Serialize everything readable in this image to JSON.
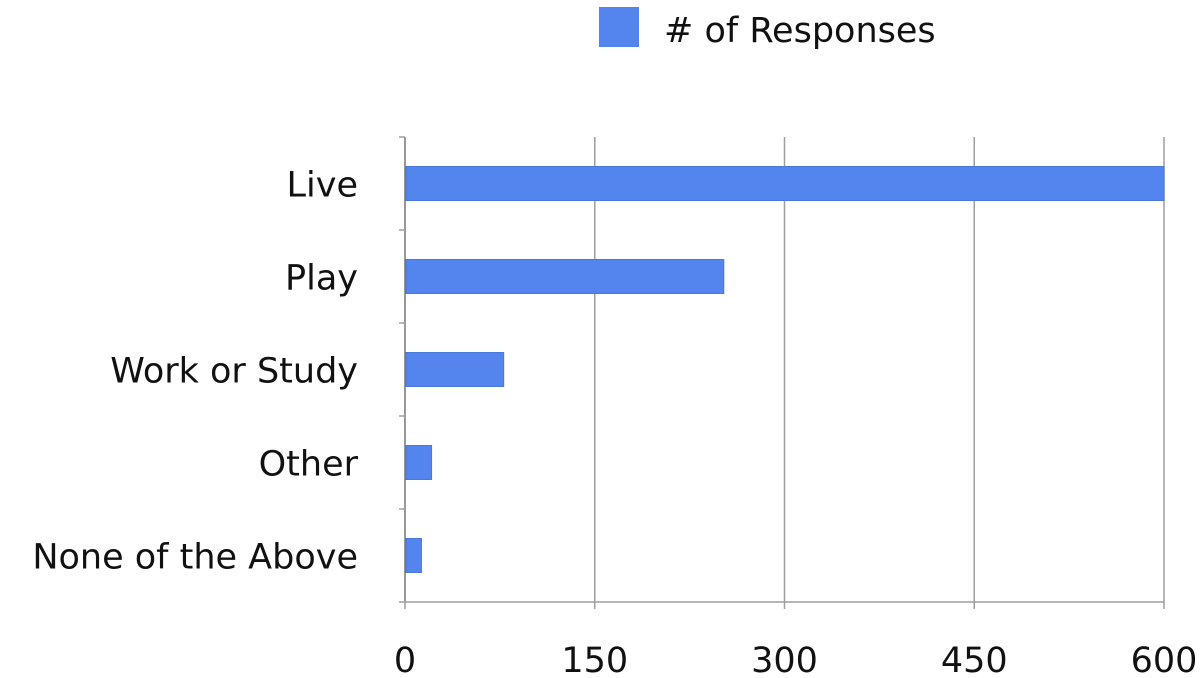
{
  "chart_data": {
    "type": "bar",
    "orientation": "horizontal",
    "categories": [
      "Live",
      "Play",
      "Work or Study",
      "Other",
      "None of the Above"
    ],
    "series": [
      {
        "name": "# of Responses",
        "values": [
          600,
          252,
          78,
          21,
          13
        ],
        "color": "#5484ed"
      }
    ],
    "xlim": [
      0,
      600
    ],
    "xticks": [
      "0",
      "150",
      "300",
      "450",
      "600"
    ],
    "grid": true,
    "legend": "top"
  }
}
